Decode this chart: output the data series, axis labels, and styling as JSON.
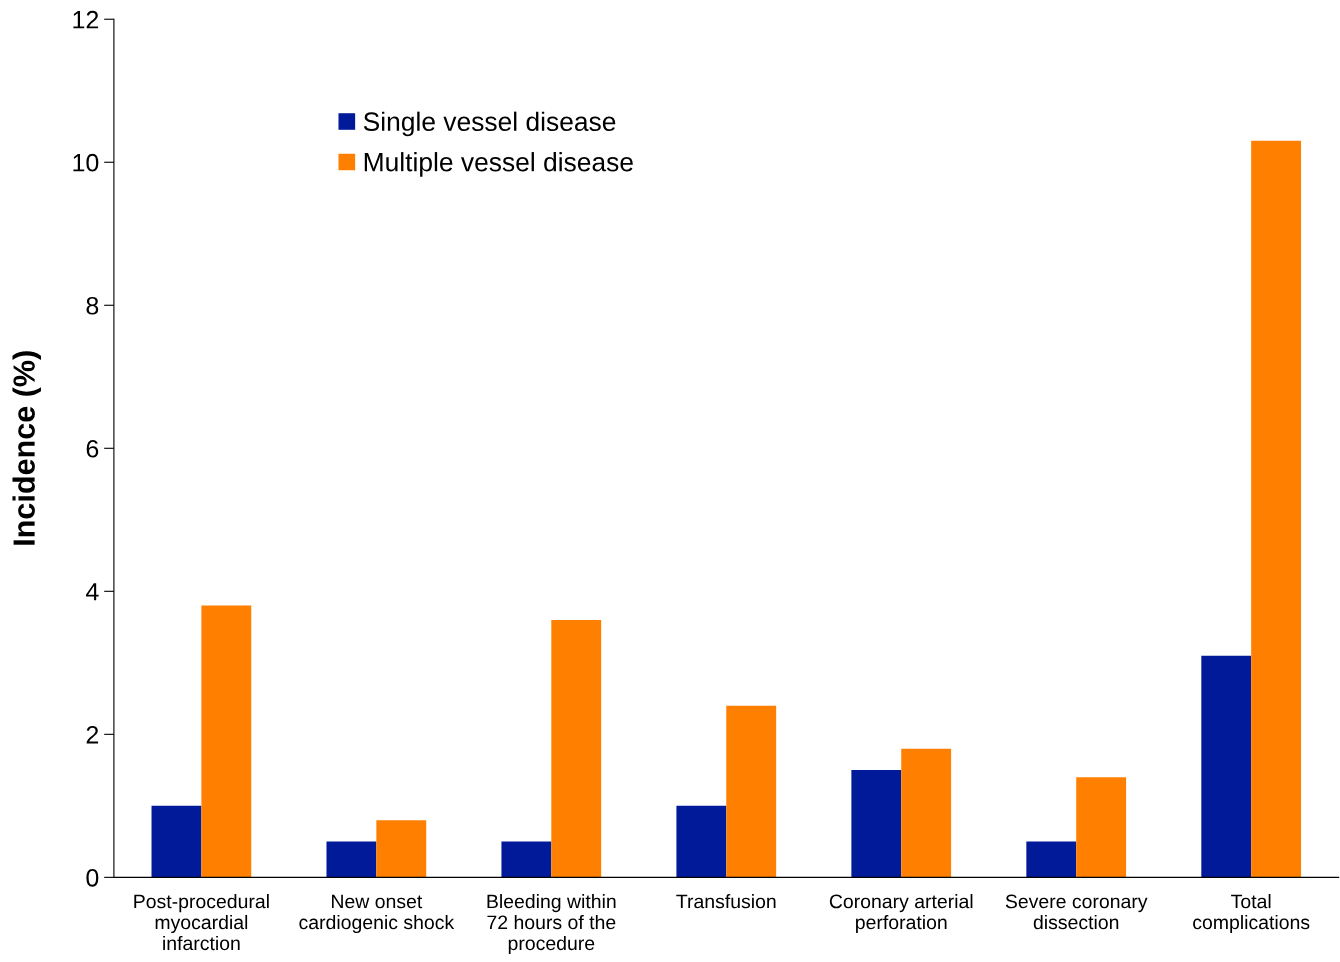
{
  "chart_data": {
    "type": "bar",
    "ylabel": "Incidence (%)",
    "categories": [
      "Post-procedural\nmyocardial\ninfarction",
      "New onset\ncardiogenic shock",
      "Bleeding within\n72 hours of the\nprocedure",
      "Transfusion",
      "Coronary arterial\nperforation",
      "Severe coronary\ndissection",
      "Total\ncomplications"
    ],
    "series": [
      {
        "name": "Single vessel disease",
        "color": "#001a9a",
        "values": [
          1.0,
          0.5,
          0.5,
          1.0,
          1.5,
          0.5,
          3.1
        ]
      },
      {
        "name": "Multiple vessel disease",
        "color": "#ff7f00",
        "values": [
          3.8,
          0.8,
          3.6,
          2.4,
          1.8,
          1.4,
          10.3
        ]
      }
    ],
    "ylim": [
      0,
      12
    ],
    "yticks": [
      0,
      2,
      4,
      6,
      8,
      10,
      12
    ],
    "grid": false,
    "legend": "top left"
  }
}
